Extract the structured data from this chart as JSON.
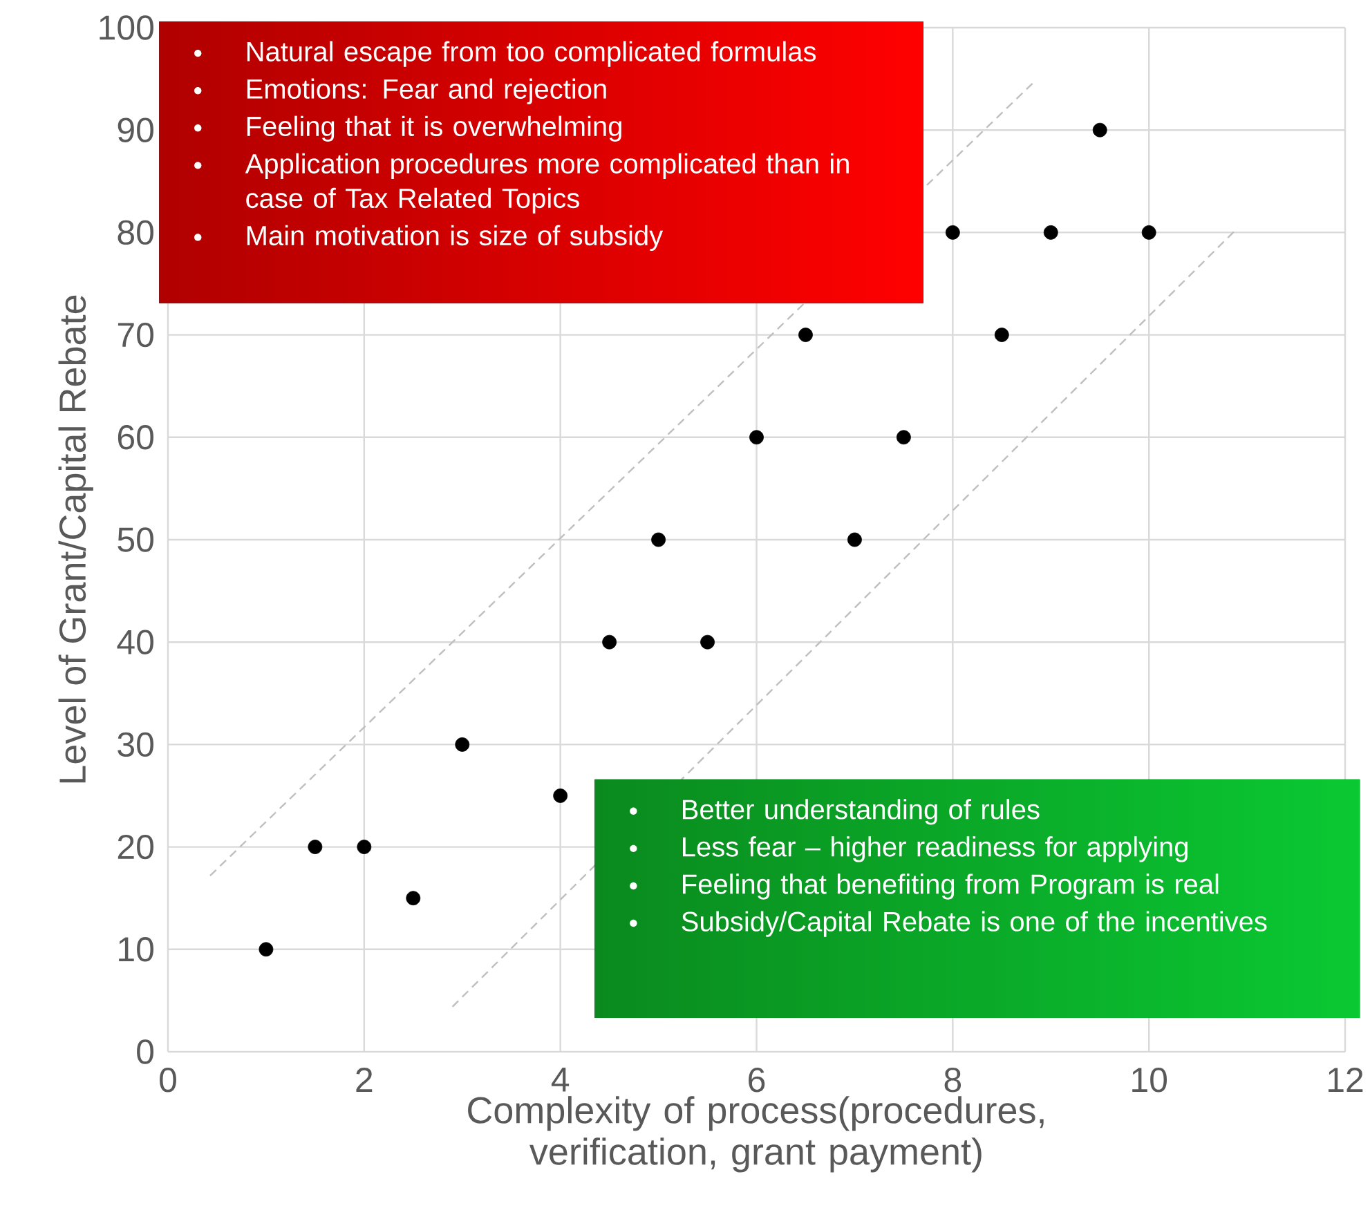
{
  "chart_data": {
    "type": "scatter",
    "xlabel": "Complexity of process(procedures, verification, grant payment)",
    "ylabel": "Level of Grant/Capital Rebate",
    "xlim": [
      0,
      12
    ],
    "ylim": [
      0,
      100
    ],
    "xticks": [
      0,
      2,
      4,
      6,
      8,
      10,
      12
    ],
    "yticks": [
      0,
      10,
      20,
      30,
      40,
      50,
      60,
      70,
      80,
      90,
      100
    ],
    "grid": true,
    "marker": "circle",
    "series": [
      {
        "color": "#000000",
        "x": [
          1,
          1.5,
          2,
          2.5,
          3,
          4,
          4.5,
          5,
          5.5,
          6,
          6.5,
          7,
          7.5,
          8,
          8.5,
          9,
          9.5,
          10
        ],
        "values": [
          10,
          20,
          20,
          15,
          30,
          25,
          40,
          50,
          40,
          60,
          70,
          50,
          60,
          80,
          70,
          80,
          90,
          80
        ]
      },
      {
        "type": "line",
        "line_style": "dashed",
        "marker": "none",
        "color": "#bfbfbf",
        "x": [
          0.43,
          8.84
        ],
        "values": [
          17.2,
          94.8
        ]
      },
      {
        "type": "line",
        "line_style": "dashed",
        "marker": "none",
        "color": "#bfbfbf",
        "x": [
          2.9,
          10.89
        ],
        "values": [
          4.4,
          80.3
        ]
      }
    ],
    "annotations": [
      "Natural  escape from too complicated formulas",
      "Emotions: Fear and rejection",
      "Feeling that it is overwhelming",
      "Application procedures more complicated than in case of Tax Related Topics",
      "Main motivation is size of subsidy",
      "Better understanding of rules",
      "Less fear – higher readiness for applying",
      "Feeling that benefiting from Program is real",
      "Subsidy/Capital Rebate is one of the incentives"
    ]
  }
}
